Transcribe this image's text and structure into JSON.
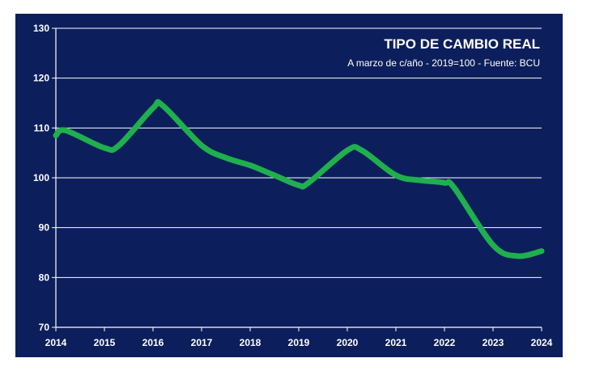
{
  "chart_data": {
    "type": "line",
    "title": "TIPO DE CAMBIO REAL",
    "subtitle": "A marzo de c/año - 2019=100 - Fuente: BCU",
    "xlabel": "",
    "ylabel": "",
    "x_ticks": [
      "2014",
      "2015",
      "2016",
      "2017",
      "2018",
      "2019",
      "2020",
      "2021",
      "2022",
      "2023",
      "2024"
    ],
    "y_ticks": [
      70,
      80,
      90,
      100,
      110,
      120,
      130
    ],
    "xlim": [
      2014,
      2024
    ],
    "ylim": [
      70,
      130
    ],
    "grid": "horizontal",
    "legend": "none",
    "series": [
      {
        "color": "#1fb04d",
        "x": [
          2014,
          2014.2,
          2015,
          2015.3,
          2016,
          2016.2,
          2017,
          2017.5,
          2018,
          2018.5,
          2019,
          2019.2,
          2020,
          2020.3,
          2021,
          2021.5,
          2022,
          2022.2,
          2023,
          2023.5,
          2024
        ],
        "y": [
          108.5,
          109.5,
          106,
          106.5,
          114,
          114.5,
          106.5,
          104,
          102.5,
          100.5,
          98.5,
          99,
          105.5,
          105.5,
          100.5,
          99.5,
          99,
          98,
          86.5,
          84.3,
          85.3
        ]
      }
    ]
  },
  "colors": {
    "background": "#0c1f5c",
    "axis": "#ffffff",
    "grid": "#ffffff",
    "line": "#1fb04d"
  }
}
